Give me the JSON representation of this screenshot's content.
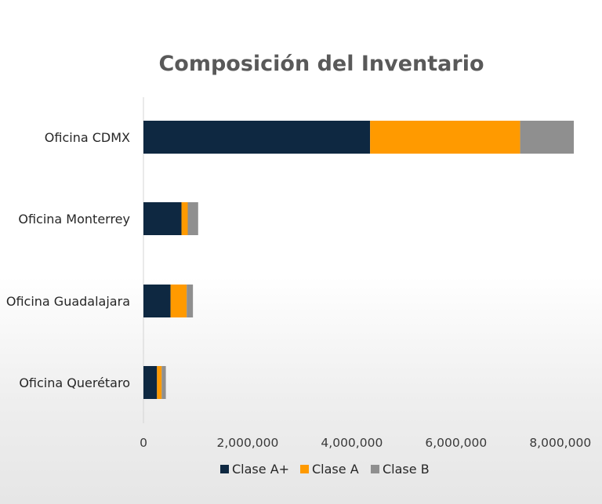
{
  "chart_data": {
    "type": "bar",
    "orientation": "horizontal",
    "stacked": true,
    "title": "Composición del Inventario",
    "xlabel": "",
    "ylabel": "",
    "xlim": [
      0,
      8500000
    ],
    "ticks": [
      {
        "value": 0,
        "label": "0"
      },
      {
        "value": 2000000,
        "label": "2,000,000"
      },
      {
        "value": 4000000,
        "label": "4,000,000"
      },
      {
        "value": 6000000,
        "label": "6,000,000"
      },
      {
        "value": 8000000,
        "label": "8,000,000"
      }
    ],
    "grid": false,
    "legend_position": "bottom",
    "categories": [
      "Oficina CDMX",
      "Oficina Monterrey",
      "Oficina Guadalajara",
      "Oficina Querétaro"
    ],
    "series": [
      {
        "name": "Clase A+",
        "color": "#0e2841",
        "values": [
          4350000,
          730000,
          520000,
          260000
        ]
      },
      {
        "name": "Clase A",
        "color": "#ff9a00",
        "values": [
          2880000,
          120000,
          310000,
          90000
        ]
      },
      {
        "name": "Clase B",
        "color": "#8f8f8f",
        "values": [
          1030000,
          200000,
          120000,
          80000
        ]
      }
    ]
  }
}
